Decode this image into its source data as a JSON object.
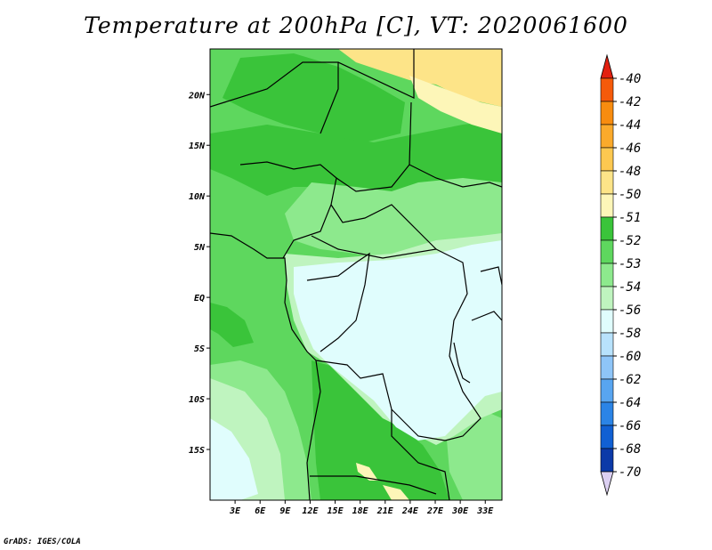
{
  "title": "Temperature at 200hPa [C], VT: 2020061600",
  "credit": "GrADS: IGES/COLA",
  "map": {
    "lon_range": [
      0,
      35
    ],
    "lat_range": [
      -20,
      24.5
    ],
    "lat_ticks": [
      {
        "value": 20,
        "label": "20N"
      },
      {
        "value": 15,
        "label": "15N"
      },
      {
        "value": 10,
        "label": "10N"
      },
      {
        "value": 5,
        "label": "5N"
      },
      {
        "value": 0,
        "label": "EQ"
      },
      {
        "value": -5,
        "label": "5S"
      },
      {
        "value": -10,
        "label": "10S"
      },
      {
        "value": -15,
        "label": "15S"
      }
    ],
    "lon_ticks": [
      {
        "value": 3,
        "label": "3E"
      },
      {
        "value": 6,
        "label": "6E"
      },
      {
        "value": 9,
        "label": "9E"
      },
      {
        "value": 12,
        "label": "12E"
      },
      {
        "value": 15,
        "label": "15E"
      },
      {
        "value": 18,
        "label": "18E"
      },
      {
        "value": 21,
        "label": "21E"
      },
      {
        "value": 24,
        "label": "24E"
      },
      {
        "value": 27,
        "label": "27E"
      },
      {
        "value": 30,
        "label": "30E"
      },
      {
        "value": 33,
        "label": "33E"
      }
    ]
  },
  "colorbar": {
    "labels": [
      "-40",
      "-42",
      "-44",
      "-46",
      "-48",
      "-50",
      "-51",
      "-52",
      "-53",
      "-54",
      "-56",
      "-58",
      "-60",
      "-62",
      "-64",
      "-66",
      "-68",
      "-70"
    ],
    "colors": [
      "#e22010",
      "#f55a0a",
      "#f88c0f",
      "#fbaa2b",
      "#fdc850",
      "#fde488",
      "#fdf6b8",
      "#3ac43a",
      "#5ed75e",
      "#8de98d",
      "#bff4bf",
      "#e0fdfd",
      "#b8e2fc",
      "#8ec5f8",
      "#58a5f0",
      "#2b84e6",
      "#1160d3",
      "#0b3aa8",
      "#0a1a70",
      "#dcd0f2"
    ]
  },
  "palette": {
    "ocean_green": "#5ed75e",
    "dark_green": "#3ac43a",
    "light_green": "#8de98d",
    "pale_green": "#bff4bf",
    "cyan": "#e0fdfd",
    "yellow": "#fde488",
    "pale_yellow": "#fdf6b8"
  }
}
